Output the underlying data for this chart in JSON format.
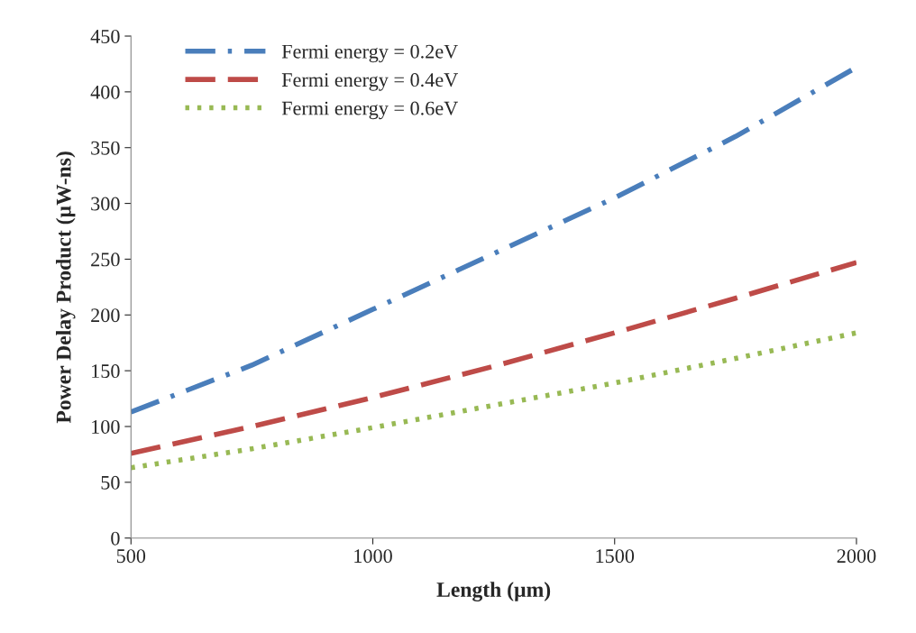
{
  "chart_data": {
    "type": "line",
    "xlabel": "Length (µm)",
    "ylabel": "Power Delay Product (µW-ns)",
    "x": [
      500,
      750,
      1000,
      1250,
      1500,
      1750,
      2000
    ],
    "series": [
      {
        "name": "Fermi energy = 0.2eV",
        "color": "#4a7ebb",
        "line_style": "dashdot",
        "values": [
          113,
          155,
          205,
          255,
          305,
          360,
          422
        ]
      },
      {
        "name": "Fermi energy = 0.4eV",
        "color": "#be4b48",
        "line_style": "dashed",
        "values": [
          76,
          100,
          126,
          154,
          184,
          215,
          247
        ]
      },
      {
        "name": "Fermi energy = 0.6eV",
        "color": "#98b954",
        "line_style": "dotted",
        "values": [
          63,
          80,
          99,
          119,
          139,
          161,
          184
        ]
      }
    ],
    "xlim": [
      500,
      2000
    ],
    "xticks": [
      500,
      1000,
      1500,
      2000
    ],
    "ylim": [
      0,
      450
    ],
    "yticks": [
      0,
      50,
      100,
      150,
      200,
      250,
      300,
      350,
      400,
      450
    ],
    "grid": false,
    "legend": "top left",
    "marker": "none"
  }
}
